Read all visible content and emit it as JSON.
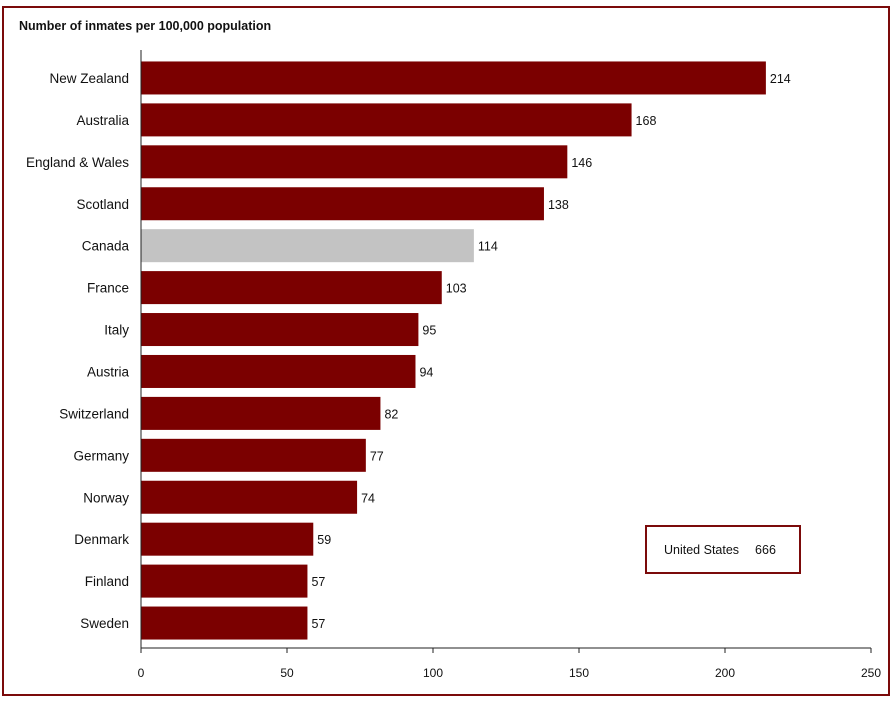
{
  "chart_data": {
    "type": "bar",
    "orientation": "horizontal",
    "title": "Number of inmates per 100,000 population",
    "categories": [
      "New Zealand",
      "Australia",
      "England & Wales",
      "Scotland",
      "Canada",
      "France",
      "Italy",
      "Austria",
      "Switzerland",
      "Germany",
      "Norway",
      "Denmark",
      "Finland",
      "Sweden"
    ],
    "values": [
      214,
      168,
      146,
      138,
      114,
      103,
      95,
      94,
      82,
      77,
      74,
      59,
      57,
      57
    ],
    "highlight_category": "Canada",
    "xlim": [
      0,
      250
    ],
    "xticks": [
      0,
      50,
      100,
      150,
      200,
      250
    ],
    "grid": false,
    "colors": {
      "bar": "#7b0000",
      "highlight": "#c3c3c3",
      "frame": "#7b0a0a"
    },
    "annotation": {
      "label": "United States",
      "value": "666"
    }
  }
}
